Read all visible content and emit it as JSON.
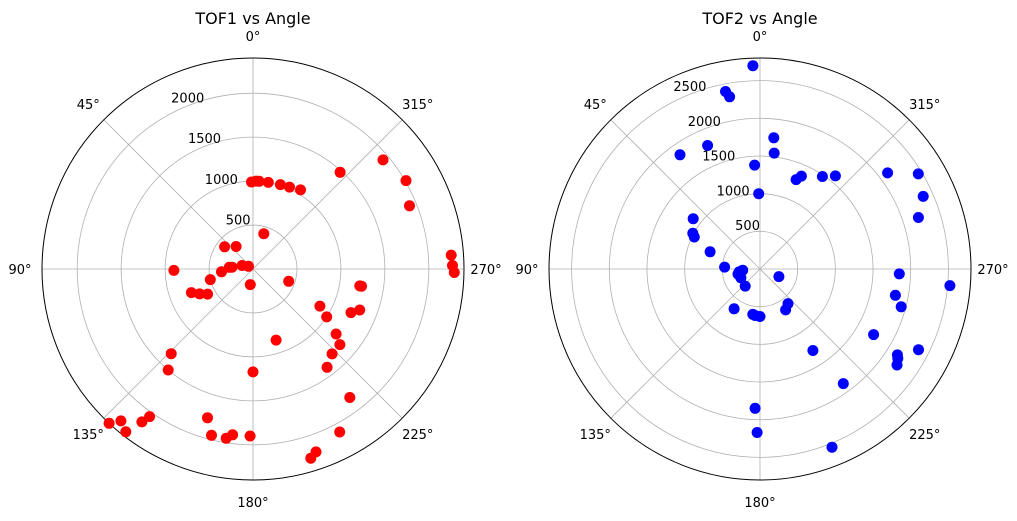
{
  "chart_data": [
    {
      "type": "scatter",
      "projection": "polar",
      "title": "TOF1 vs Angle",
      "theta_zero": "top",
      "theta_direction": "counterclockwise",
      "theta_ticks": [
        "0°",
        "45°",
        "90°",
        "135°",
        "180°",
        "225°",
        "270°",
        "315°"
      ],
      "r_ticks": [
        500,
        1000,
        1500,
        2000
      ],
      "r_tick_labels": [
        "500",
        "1000",
        "1500",
        "2000"
      ],
      "rlim": [
        0,
        2400
      ],
      "grid": true,
      "series": [
        {
          "color": "#ff0000",
          "points": [
            {
              "theta": 356,
              "r": 1000
            },
            {
              "theta": 358,
              "r": 1000
            },
            {
              "theta": 1,
              "r": 990
            },
            {
              "theta": 350,
              "r": 1000
            },
            {
              "theta": 342,
              "r": 1010
            },
            {
              "theta": 336,
              "r": 1020
            },
            {
              "theta": 329,
              "r": 1050
            },
            {
              "theta": 318,
              "r": 1480
            },
            {
              "theta": 310,
              "r": 1930
            },
            {
              "theta": 300,
              "r": 2010
            },
            {
              "theta": 292,
              "r": 1920
            },
            {
              "theta": 274,
              "r": 2260
            },
            {
              "theta": 271,
              "r": 2270
            },
            {
              "theta": 269,
              "r": 2290
            },
            {
              "theta": 249,
              "r": 1300
            },
            {
              "theta": 246,
              "r": 1220
            },
            {
              "theta": 237,
              "r": 1000
            },
            {
              "theta": 232,
              "r": 1200
            },
            {
              "theta": 229,
              "r": 1310
            },
            {
              "theta": 223,
              "r": 1320
            },
            {
              "theta": 217,
              "r": 1400
            },
            {
              "theta": 217,
              "r": 1830
            },
            {
              "theta": 208,
              "r": 2100
            },
            {
              "theta": 199,
              "r": 2200
            },
            {
              "theta": 197,
              "r": 2250
            },
            {
              "theta": 179,
              "r": 1900
            },
            {
              "theta": 173,
              "r": 1900
            },
            {
              "theta": 171,
              "r": 1950
            },
            {
              "theta": 166,
              "r": 1950
            },
            {
              "theta": 144,
              "r": 2150
            },
            {
              "theta": 145,
              "r": 2050
            },
            {
              "theta": 142,
              "r": 2350
            },
            {
              "theta": 139,
              "r": 2290
            },
            {
              "theta": 137,
              "r": 2400
            },
            {
              "theta": 140,
              "r": 1500
            },
            {
              "theta": 136,
              "r": 1340
            },
            {
              "theta": 163,
              "r": 1770
            },
            {
              "theta": 180,
              "r": 1170
            },
            {
              "theta": 115,
              "r": 670
            },
            {
              "theta": 119,
              "r": 590
            },
            {
              "theta": 111,
              "r": 750
            },
            {
              "theta": 91,
              "r": 900
            },
            {
              "theta": 104,
              "r": 500
            },
            {
              "theta": 95,
              "r": 360
            },
            {
              "theta": 72,
              "r": 130
            },
            {
              "theta": 59,
              "r": 60
            },
            {
              "theta": 37,
              "r": 320
            },
            {
              "theta": 52,
              "r": 410
            },
            {
              "theta": 85,
              "r": 240
            },
            {
              "theta": 86,
              "r": 270
            },
            {
              "theta": 198,
              "r": 850
            },
            {
              "theta": 170,
              "r": 180
            },
            {
              "theta": 251,
              "r": 430
            },
            {
              "theta": 241,
              "r": 870
            },
            {
              "theta": 261,
              "r": 1250
            },
            {
              "theta": 261,
              "r": 1230
            },
            {
              "theta": 343,
              "r": 420
            }
          ]
        }
      ]
    },
    {
      "type": "scatter",
      "projection": "polar",
      "title": "TOF2 vs Angle",
      "theta_zero": "top",
      "theta_direction": "counterclockwise",
      "theta_ticks": [
        "0°",
        "45°",
        "90°",
        "135°",
        "180°",
        "225°",
        "270°",
        "315°"
      ],
      "r_ticks": [
        500,
        1000,
        1500,
        2000,
        2500
      ],
      "r_tick_labels": [
        "500",
        "1000",
        "1500",
        "2000",
        "2500"
      ],
      "rlim": [
        0,
        2800
      ],
      "grid": true,
      "series": [
        {
          "color": "#0000ff",
          "points": [
            {
              "theta": 2,
              "r": 2700
            },
            {
              "theta": 11,
              "r": 2400
            },
            {
              "theta": 10,
              "r": 2320
            },
            {
              "theta": 23,
              "r": 1780
            },
            {
              "theta": 35,
              "r": 1850
            },
            {
              "theta": 53,
              "r": 1110
            },
            {
              "theta": 62,
              "r": 1010
            },
            {
              "theta": 64,
              "r": 970
            },
            {
              "theta": 71,
              "r": 700
            },
            {
              "theta": 87,
              "r": 470
            },
            {
              "theta": 94,
              "r": 230
            },
            {
              "theta": 98,
              "r": 280
            },
            {
              "theta": 103,
              "r": 300
            },
            {
              "theta": 115,
              "r": 280
            },
            {
              "theta": 139,
              "r": 300
            },
            {
              "theta": 147,
              "r": 630
            },
            {
              "theta": 171,
              "r": 610
            },
            {
              "theta": 174,
              "r": 620
            },
            {
              "theta": 178,
              "r": 1850
            },
            {
              "theta": 179,
              "r": 2170
            },
            {
              "theta": 202,
              "r": 2550
            },
            {
              "theta": 213,
              "r": 1290
            },
            {
              "theta": 212,
              "r": 640
            },
            {
              "theta": 219,
              "r": 590
            },
            {
              "theta": 240,
              "r": 1740
            },
            {
              "theta": 216,
              "r": 1880
            },
            {
              "theta": 237,
              "r": 2180
            },
            {
              "theta": 235,
              "r": 2220
            },
            {
              "theta": 238,
              "r": 2150
            },
            {
              "theta": 243,
              "r": 2360
            },
            {
              "theta": 255,
              "r": 1940
            },
            {
              "theta": 259,
              "r": 1830
            },
            {
              "theta": 268,
              "r": 1850
            },
            {
              "theta": 265,
              "r": 2530
            },
            {
              "theta": 288,
              "r": 2210
            },
            {
              "theta": 301,
              "r": 2450
            },
            {
              "theta": 294,
              "r": 2370
            },
            {
              "theta": 307,
              "r": 2120
            },
            {
              "theta": 321,
              "r": 1590
            },
            {
              "theta": 326,
              "r": 1480
            },
            {
              "theta": 336,
              "r": 1350
            },
            {
              "theta": 338,
              "r": 1280
            },
            {
              "theta": 354,
              "r": 1750
            },
            {
              "theta": 353,
              "r": 1550
            },
            {
              "theta": 3,
              "r": 1380
            },
            {
              "theta": 1,
              "r": 1000
            },
            {
              "theta": 248,
              "r": 270
            },
            {
              "theta": 180,
              "r": 630
            }
          ]
        }
      ]
    }
  ]
}
